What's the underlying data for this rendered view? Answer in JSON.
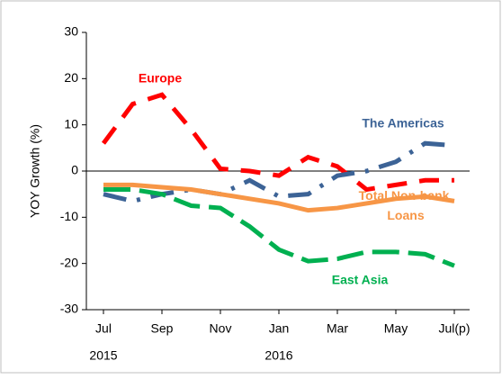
{
  "chart_data": {
    "type": "line",
    "y_axis_label": "YOY Growth (%)",
    "categories": [
      "Jul",
      null,
      "Sep",
      null,
      "Nov",
      null,
      "Jan",
      null,
      "Mar",
      null,
      "May",
      null,
      "Jul(p)"
    ],
    "years": [
      "2015",
      "2016"
    ],
    "ylim": [
      -30,
      30
    ],
    "yticks": [
      -30,
      -20,
      -10,
      0,
      10,
      20,
      30
    ],
    "series": [
      {
        "name": "Europe",
        "color": "#ff0000",
        "dash": "dashed",
        "values": [
          6,
          14.5,
          16.5,
          9,
          0.5,
          0,
          -1,
          3,
          1,
          -4,
          -3,
          -2,
          -2
        ]
      },
      {
        "name": "The Americas",
        "color": "#3c6396",
        "dash": "dashdot",
        "values": [
          -5,
          -6.5,
          -5,
          -4,
          -5,
          -2,
          -5.5,
          -5,
          -1,
          0,
          2,
          6,
          5.5
        ]
      },
      {
        "name": "Total Non-bank Loans",
        "color": "#f79646",
        "dash": "solid",
        "values": [
          -3,
          -3,
          -3.5,
          -4,
          -5,
          -6,
          -7,
          -8.5,
          -8,
          -7,
          -6,
          -5.5,
          -6.5
        ]
      },
      {
        "name": "East Asia",
        "color": "#00b050",
        "dash": "longdash",
        "values": [
          -4,
          -4,
          -5,
          -7.5,
          -8,
          -12,
          -17,
          -19.5,
          -19,
          -17.5,
          -17.5,
          -18,
          -20.5
        ]
      }
    ]
  }
}
